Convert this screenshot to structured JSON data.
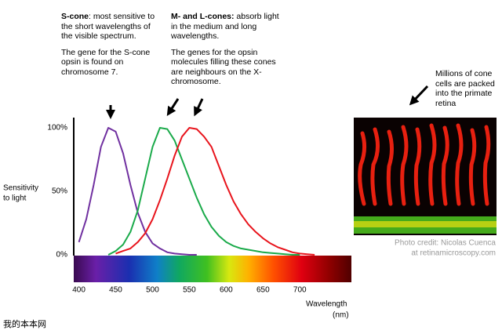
{
  "chart_data": {
    "type": "line",
    "ylabel": [
      "Sensitivity",
      "to light"
    ],
    "xlabel": [
      "Wavelength",
      "(nm)"
    ],
    "x": [
      400,
      410,
      420,
      430,
      440,
      450,
      460,
      470,
      480,
      490,
      500,
      510,
      520,
      530,
      540,
      550,
      560,
      570,
      580,
      590,
      600,
      610,
      620,
      630,
      640,
      650,
      660,
      670,
      680,
      690,
      700,
      710,
      720
    ],
    "series": [
      {
        "name": "S-cone",
        "color": "#7030a0",
        "values": [
          10,
          28,
          55,
          85,
          100,
          97,
          80,
          55,
          33,
          18,
          9,
          5,
          2,
          1,
          0.5,
          0,
          0,
          null,
          null,
          null,
          null,
          null,
          null,
          null,
          null,
          null,
          null,
          null,
          null,
          null,
          null,
          null,
          null
        ]
      },
      {
        "name": "M-cone",
        "color": "#1aaa4a",
        "values": [
          null,
          null,
          null,
          null,
          0,
          3,
          8,
          18,
          35,
          60,
          85,
          100,
          99,
          90,
          75,
          60,
          45,
          32,
          22,
          15,
          10,
          7,
          5,
          4,
          3,
          2,
          1.5,
          1,
          0.5,
          0,
          0,
          null,
          null
        ]
      },
      {
        "name": "L-cone",
        "color": "#e8141c",
        "values": [
          null,
          null,
          null,
          null,
          null,
          1,
          3,
          5,
          10,
          17,
          28,
          43,
          60,
          78,
          93,
          100,
          99,
          93,
          85,
          70,
          55,
          42,
          32,
          24,
          18,
          13,
          9,
          6,
          4,
          2,
          1,
          0.5,
          0
        ]
      }
    ],
    "xlim": [
      393,
      770
    ],
    "ylim": [
      0,
      100
    ],
    "xticks": [
      400,
      450,
      500,
      550,
      600,
      650,
      700
    ],
    "yticks": [
      {
        "value": 0,
        "label": "0%"
      },
      {
        "value": 50,
        "label": "50%"
      },
      {
        "value": 100,
        "label": "100%"
      }
    ],
    "annotations": {
      "s_cone": [
        {
          "bold": "S-cone",
          "text": ": most sensitive to the short wavelengths of the visible spectrum."
        },
        {
          "text": "The gene for the S-cone opsin is found on chromosome 7."
        }
      ],
      "ml_cones": [
        {
          "bold": "M- and L-cones:",
          "text": " absorb light in the medium and long wavelengths."
        },
        {
          "text": "The genes for the opsin molecules filling these cones are neighbours on the X-chromosome."
        }
      ],
      "retina": "Millions of cone cells are packed into the primate retina",
      "credit": [
        "Photo credit: Nicolas Cuenca",
        "at retinamicroscopy.com"
      ]
    },
    "footer": "我的本本网"
  }
}
